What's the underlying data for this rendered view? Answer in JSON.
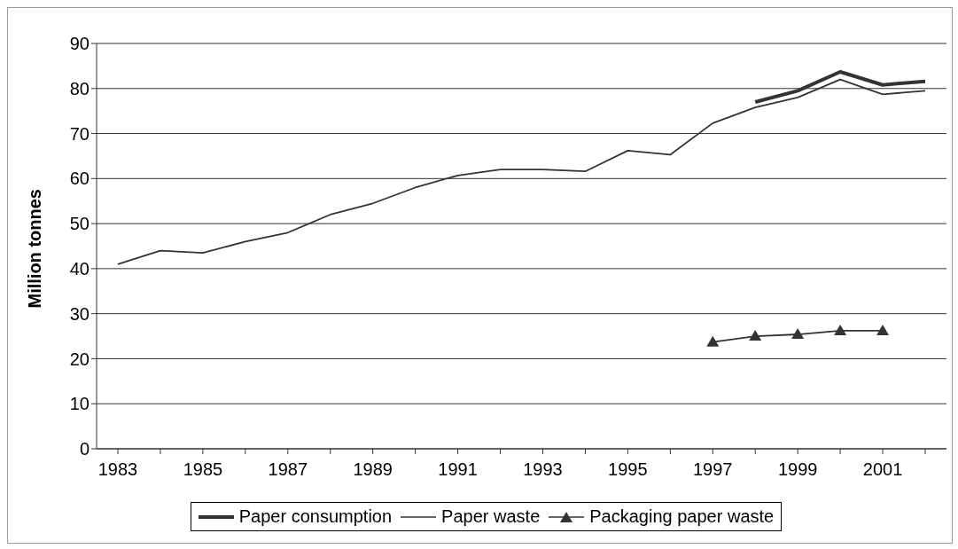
{
  "chart_data": {
    "type": "line",
    "categories": [
      "1983",
      null,
      "1985",
      null,
      "1987",
      null,
      "1989",
      null,
      "1991",
      null,
      "1993",
      null,
      "1995",
      null,
      "1997",
      null,
      "1999",
      null,
      "2001",
      null
    ],
    "ylabel": "Million tonnes",
    "series": [
      {
        "name": "Paper consumption",
        "color": "#333333",
        "marker": "none",
        "values": [
          null,
          null,
          null,
          null,
          null,
          null,
          null,
          null,
          null,
          null,
          null,
          null,
          null,
          null,
          null,
          77,
          79.5,
          83.7,
          80.8,
          81.6
        ]
      },
      {
        "name": "Paper waste",
        "color": "#333333",
        "marker": "none",
        "values": [
          41,
          44,
          43.5,
          46,
          48,
          52,
          54.5,
          58,
          60.7,
          62,
          62,
          61.6,
          66.2,
          65.3,
          72.3,
          75.8,
          78,
          82,
          78.7,
          79.5
        ]
      },
      {
        "name": "Packaging paper waste",
        "color": "#333333",
        "marker": "triangle",
        "values": [
          null,
          null,
          null,
          null,
          null,
          null,
          null,
          null,
          null,
          null,
          null,
          null,
          null,
          null,
          23.7,
          25,
          25.4,
          26.2,
          26.2,
          null
        ]
      }
    ],
    "ylim": [
      0,
      90
    ],
    "yticks": [
      0,
      10,
      20,
      30,
      40,
      50,
      60,
      70,
      80,
      90
    ],
    "grid": "y",
    "legend": "bottom",
    "line_style": "solid"
  }
}
